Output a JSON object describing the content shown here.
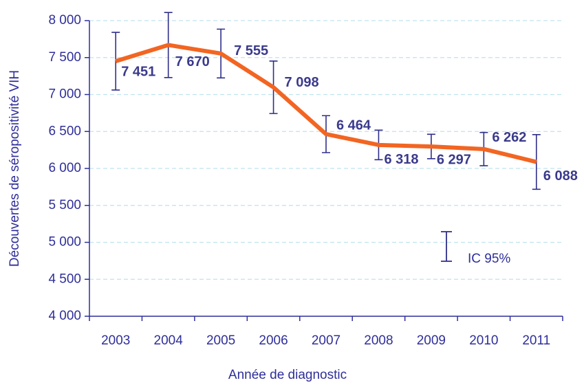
{
  "chart_data": {
    "type": "line",
    "ylabel": "Découvertes de séropositivité VIH",
    "xlabel": "Année de diagnostic",
    "categories": [
      "2003",
      "2004",
      "2005",
      "2006",
      "2007",
      "2008",
      "2009",
      "2010",
      "2011"
    ],
    "series": [
      {
        "name": "IC 95%",
        "color": "#f26522",
        "values": [
          7451,
          7670,
          7555,
          7098,
          6464,
          6318,
          6297,
          6262,
          6088
        ],
        "value_labels": [
          "7 451",
          "7 670",
          "7 555",
          "7 098",
          "6 464",
          "6 318",
          "6 297",
          "6 262",
          "6 088"
        ],
        "errors": [
          390,
          440,
          330,
          355,
          250,
          200,
          165,
          225,
          370
        ],
        "error_color": "#2e2e8a"
      }
    ],
    "ylim": [
      4000,
      8000
    ],
    "yticks": [
      {
        "value": 4000,
        "label": "4 000"
      },
      {
        "value": 4500,
        "label": "4 500"
      },
      {
        "value": 5000,
        "label": "5 000"
      },
      {
        "value": 5500,
        "label": "5 500"
      },
      {
        "value": 6000,
        "label": "6 000"
      },
      {
        "value": 6500,
        "label": "6 500"
      },
      {
        "value": 7000,
        "label": "7 000"
      },
      {
        "value": 7500,
        "label": "7 500"
      },
      {
        "value": 8000,
        "label": "8 000"
      }
    ],
    "grid": true,
    "legend": "lower right"
  }
}
